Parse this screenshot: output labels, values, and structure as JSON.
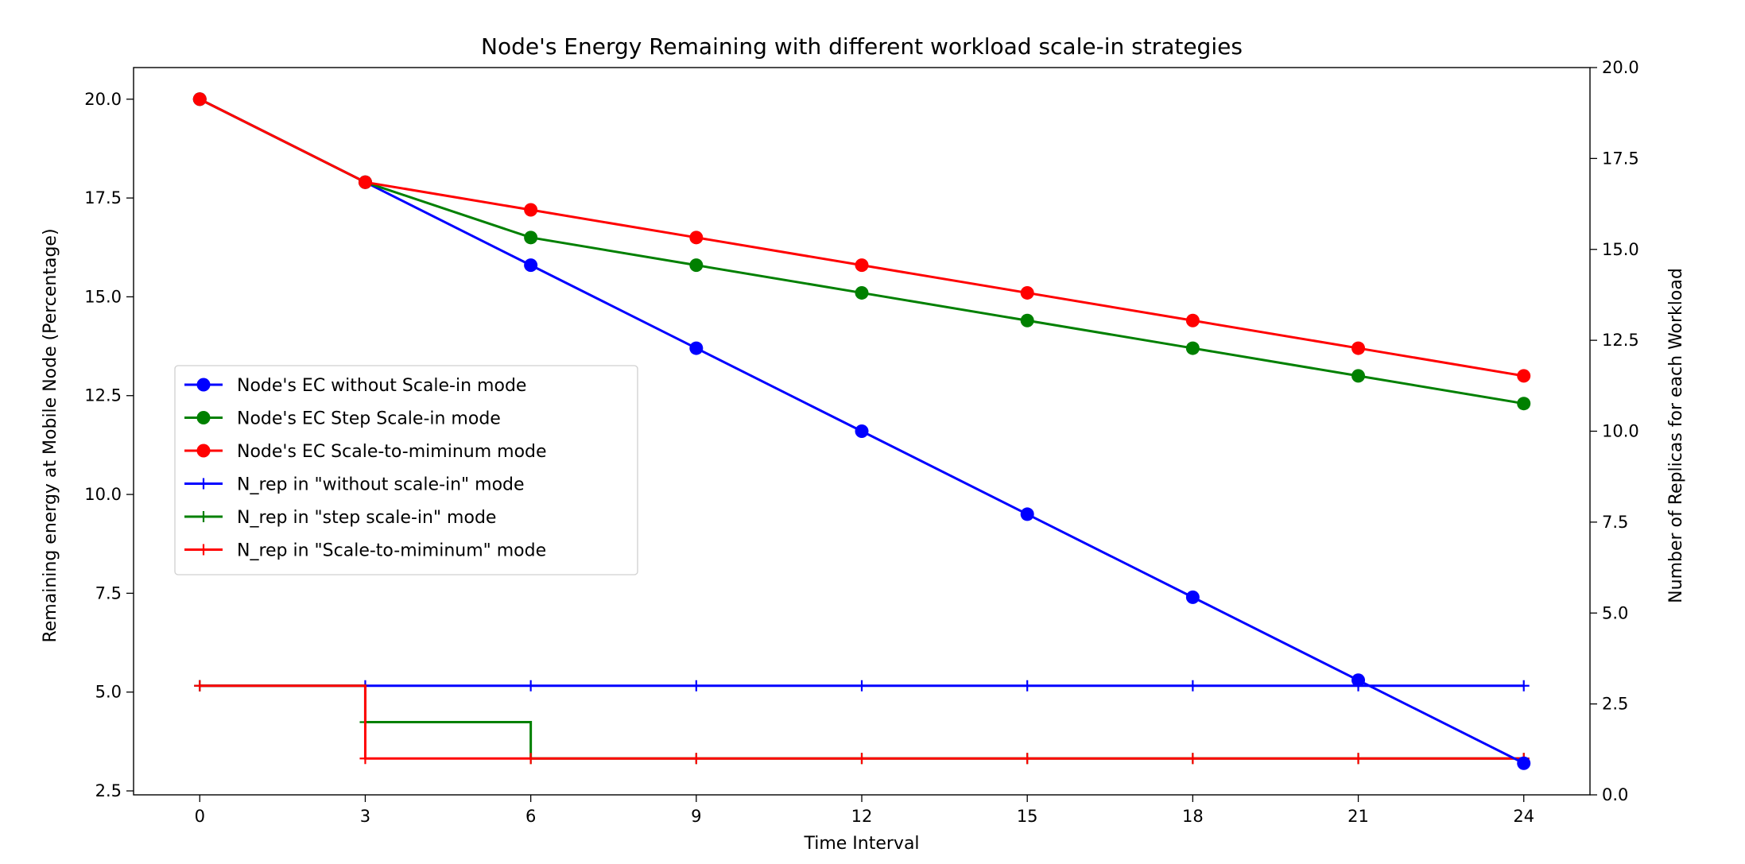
{
  "chart_data": {
    "type": "line",
    "title": "Node's Energy Remaining with different workload scale-in strategies",
    "xlabel": "Time Interval",
    "ylabel": "Remaining energy at Mobile Node (Percentage)",
    "ylabel_right": "Number of Replicas for each Workload",
    "xlim": [
      -1.2,
      25.2
    ],
    "ylim": [
      2.4,
      20.8
    ],
    "ylim_right": [
      0.0,
      20.0
    ],
    "xticks": [
      0,
      3,
      6,
      9,
      12,
      15,
      18,
      21,
      24
    ],
    "yticks": [
      2.5,
      5.0,
      7.5,
      10.0,
      12.5,
      15.0,
      17.5,
      20.0
    ],
    "yticks_right": [
      0.0,
      2.5,
      5.0,
      7.5,
      10.0,
      12.5,
      15.0,
      17.5,
      20.0
    ],
    "grid": false,
    "legend_position": "center-left",
    "series": [
      {
        "name": "Node's EC without Scale-in mode",
        "axis": "left",
        "color": "#0000ff",
        "marker": "circle",
        "x": [
          0,
          3,
          6,
          9,
          12,
          15,
          18,
          21,
          24
        ],
        "y": [
          20.0,
          17.9,
          15.8,
          13.7,
          11.6,
          9.5,
          7.4,
          5.3,
          3.2
        ]
      },
      {
        "name": "Node's EC Step Scale-in mode",
        "axis": "left",
        "color": "#008000",
        "marker": "circle",
        "x": [
          0,
          3,
          6,
          9,
          12,
          15,
          18,
          21,
          24
        ],
        "y": [
          20.0,
          17.9,
          16.5,
          15.8,
          15.1,
          14.4,
          13.7,
          13.0,
          12.3
        ]
      },
      {
        "name": "Node's EC Scale-to-miminum mode",
        "axis": "left",
        "color": "#ff0000",
        "marker": "circle",
        "x": [
          0,
          3,
          6,
          9,
          12,
          15,
          18,
          21,
          24
        ],
        "y": [
          20.0,
          17.9,
          17.2,
          16.5,
          15.8,
          15.1,
          14.4,
          13.7,
          13.0
        ]
      },
      {
        "name": "N_rep in \"without scale-in\" mode",
        "axis": "right",
        "color": "#0000ff",
        "marker": "plus",
        "step": true,
        "x": [
          0,
          3,
          6,
          9,
          12,
          15,
          18,
          21,
          24
        ],
        "y": [
          3,
          3,
          3,
          3,
          3,
          3,
          3,
          3,
          3
        ]
      },
      {
        "name": "N_rep in \"step scale-in\" mode",
        "axis": "right",
        "color": "#008000",
        "marker": "plus",
        "step": true,
        "x": [
          0,
          3,
          6,
          9,
          12,
          15,
          18,
          21,
          24
        ],
        "y": [
          3,
          2,
          1,
          1,
          1,
          1,
          1,
          1,
          1
        ]
      },
      {
        "name": "N_rep in \"Scale-to-miminum\" mode",
        "axis": "right",
        "color": "#ff0000",
        "marker": "plus",
        "step": true,
        "x": [
          0,
          3,
          6,
          9,
          12,
          15,
          18,
          21,
          24
        ],
        "y": [
          3,
          1,
          1,
          1,
          1,
          1,
          1,
          1,
          1
        ]
      }
    ]
  }
}
